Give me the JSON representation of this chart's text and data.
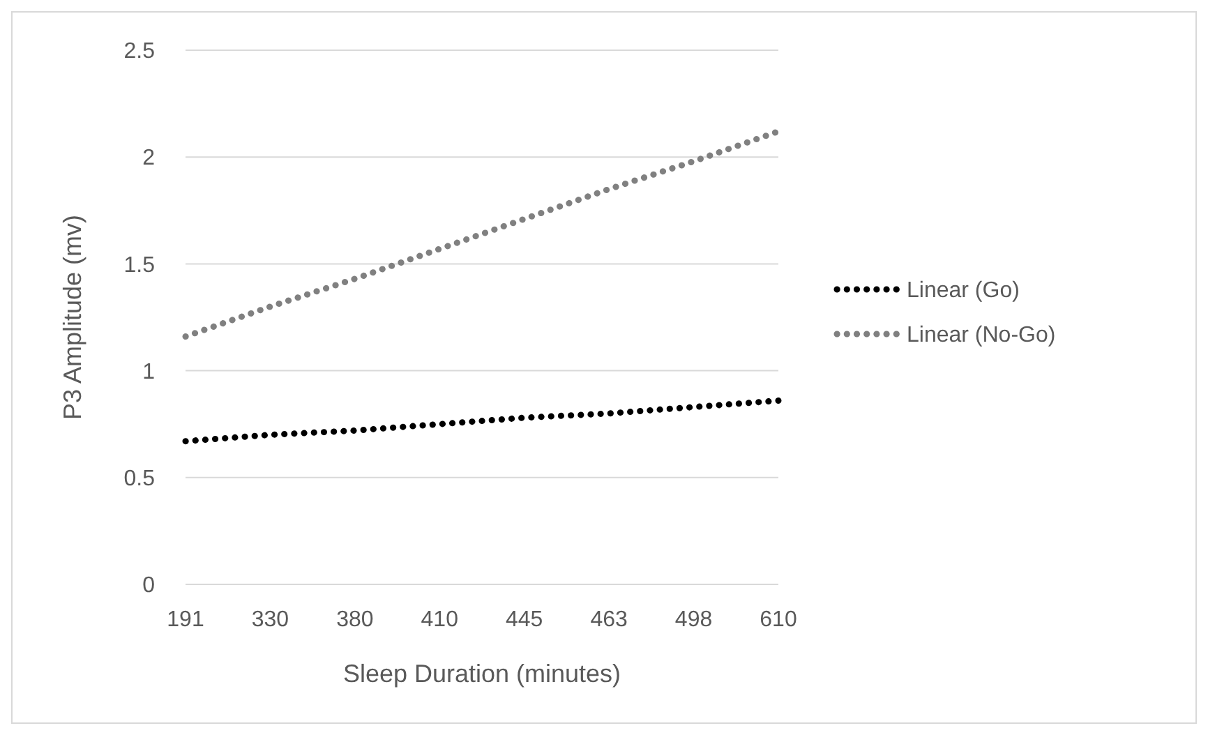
{
  "chart_data": {
    "type": "line",
    "xlabel": "Sleep Duration (minutes)",
    "ylabel": "P3 Amplitude (mv)",
    "categories": [
      "191",
      "330",
      "380",
      "410",
      "445",
      "463",
      "498",
      "610"
    ],
    "series": [
      {
        "name": "Linear (Go)",
        "color": "#000000",
        "values": [
          0.67,
          0.7,
          0.72,
          0.75,
          0.78,
          0.8,
          0.83,
          0.86
        ]
      },
      {
        "name": "Linear (No-Go)",
        "color": "#808080",
        "values": [
          1.16,
          1.3,
          1.43,
          1.57,
          1.71,
          1.85,
          1.98,
          2.12
        ]
      }
    ],
    "ylim": [
      0,
      2.5
    ],
    "yticks": [
      0,
      0.5,
      1,
      1.5,
      2,
      2.5
    ],
    "grid": "y",
    "legend": "right",
    "line_style": "dotted"
  }
}
